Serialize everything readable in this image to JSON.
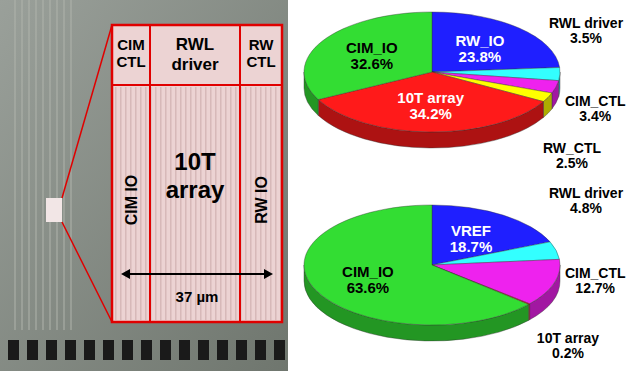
{
  "chart_data": [
    {
      "type": "pie",
      "categories": [
        "RW_IO",
        "RWL driver",
        "CIM_CTL",
        "RW_CTL",
        "10T array",
        "CIM_IO"
      ],
      "values": [
        23.8,
        3.5,
        3.4,
        2.5,
        34.2,
        32.6
      ],
      "value_labels": [
        "23.8%",
        "3.5%",
        "3.4%",
        "2.5%",
        "34.2%",
        "32.6%"
      ],
      "colors": [
        "#1f1fff",
        "#33ffff",
        "#ee22ee",
        "#ffff00",
        "#ff1a1a",
        "#33dd33"
      ],
      "data_labels": true
    },
    {
      "type": "pie",
      "categories": [
        "VREF",
        "RWL driver",
        "CIM_CTL",
        "10T array",
        "CIM_IO"
      ],
      "values": [
        18.7,
        4.8,
        12.7,
        0.2,
        63.6
      ],
      "value_labels": [
        "18.7%",
        "4.8%",
        "12.7%",
        "0.2%",
        "63.6%"
      ],
      "colors": [
        "#1f1fff",
        "#33ffff",
        "#ee22ee",
        "#ff1a1a",
        "#33dd33"
      ],
      "data_labels": true
    }
  ],
  "die_photo": {
    "blocks": [
      {
        "label": "CIM CTL"
      },
      {
        "label": "RWL driver"
      },
      {
        "label": "RW CTL"
      },
      {
        "label": "CIM IO"
      },
      {
        "label": "10T array"
      },
      {
        "label": "RW IO"
      }
    ],
    "scale_bar": "37 µm"
  }
}
